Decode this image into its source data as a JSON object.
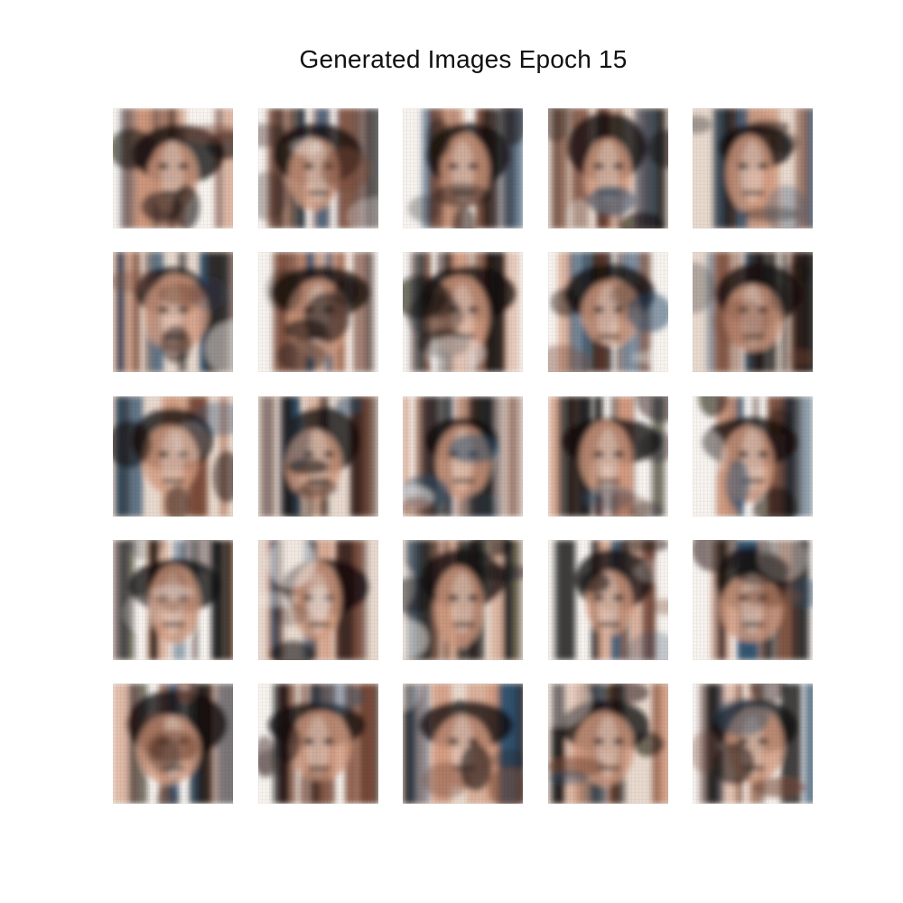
{
  "figure": {
    "title": "Generated Images Epoch 15",
    "rows": 5,
    "columns": 5,
    "tile_count": 25,
    "palette": {
      "background": "#ffffff",
      "dark": "#120c0b",
      "mid_brown": "#7a4b39",
      "light_skin": "#d39b80",
      "highlight": "#f7f3ef",
      "blue_artifact": "#2c4e6b"
    }
  }
}
